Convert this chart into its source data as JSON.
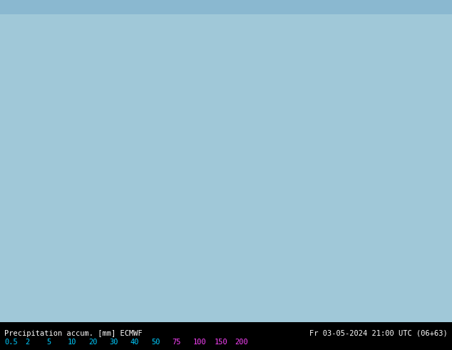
{
  "title_left": "Precipitation accum. [mm] ECMWF",
  "title_right": "Fr 03-05-2024 21:00 UTC (06+63)",
  "colorbar_values": [
    0.5,
    2,
    5,
    10,
    20,
    30,
    40,
    50,
    75,
    100,
    150,
    200
  ],
  "colorbar_colors": [
    "#b3f0ff",
    "#66d9ff",
    "#00aaff",
    "#0055ff",
    "#00cc44",
    "#ffff00",
    "#ffaa00",
    "#ff5500",
    "#cc00cc",
    "#ff00ff",
    "#ff66ff"
  ],
  "colorbar_label_colors": [
    "#00ccff",
    "#00ccff",
    "#00ccff",
    "#00ccff",
    "#00ccff",
    "#00ccff",
    "#00ccff",
    "#00ccff",
    "#ff00ff",
    "#ff00ff",
    "#ff00ff",
    "#ff00ff"
  ],
  "bg_color": "#c8e8f0",
  "land_color": "#d4ebc4",
  "fig_width": 6.34,
  "fig_height": 4.9,
  "dpi": 100
}
